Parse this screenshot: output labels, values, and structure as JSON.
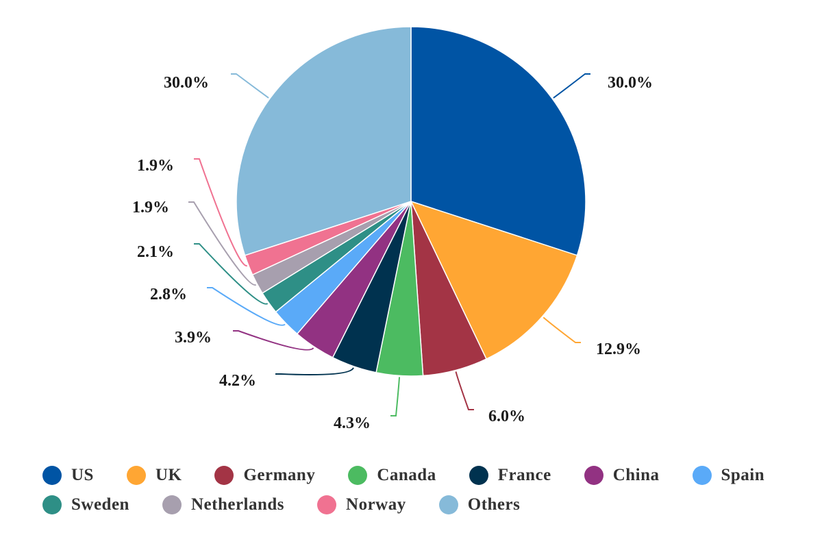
{
  "chart_data": {
    "type": "pie",
    "categories": [
      "US",
      "UK",
      "Germany",
      "Canada",
      "France",
      "China",
      "Spain",
      "Sweden",
      "Netherlands",
      "Norway",
      "Others"
    ],
    "values": [
      30.0,
      12.9,
      6.0,
      4.3,
      4.2,
      3.9,
      2.8,
      2.1,
      1.9,
      1.9,
      30.0
    ],
    "labels": [
      "30.0%",
      "12.9%",
      "6.0%",
      "4.3%",
      "4.2%",
      "3.9%",
      "2.8%",
      "2.1%",
      "1.9%",
      "1.9%",
      "30.0%"
    ],
    "colors": [
      "#0054a4",
      "#ffa633",
      "#a33445",
      "#4cbb61",
      "#00324f",
      "#923282",
      "#5aaaf8",
      "#2e8f86",
      "#a79fae",
      "#f07291",
      "#86bad9"
    ],
    "start": "top, clockwise",
    "legend_position": "bottom",
    "title": ""
  },
  "legend": {
    "rows": [
      [
        {
          "label": "US",
          "color": "#0054a4"
        },
        {
          "label": "UK",
          "color": "#ffa633"
        },
        {
          "label": "Germany",
          "color": "#a33445"
        },
        {
          "label": "Canada",
          "color": "#4cbb61"
        },
        {
          "label": "France",
          "color": "#00324f"
        },
        {
          "label": "China",
          "color": "#923282"
        },
        {
          "label": "Spain",
          "color": "#5aaaf8"
        }
      ],
      [
        {
          "label": "Sweden",
          "color": "#2e8f86"
        },
        {
          "label": "Netherlands",
          "color": "#a79fae"
        },
        {
          "label": "Norway",
          "color": "#f07291"
        },
        {
          "label": "Others",
          "color": "#86bad9"
        }
      ]
    ]
  }
}
